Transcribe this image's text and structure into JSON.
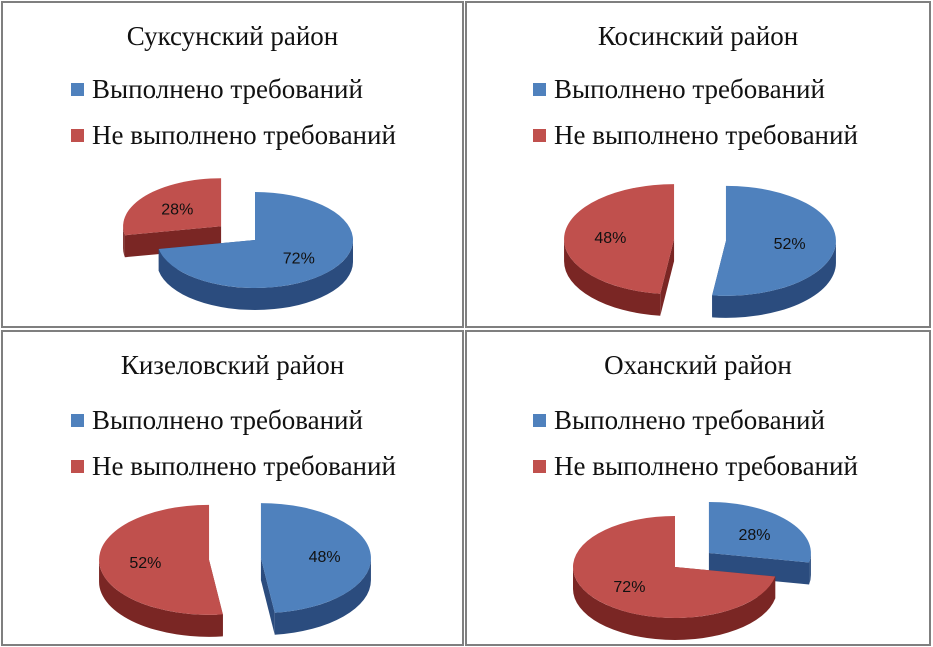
{
  "colors": {
    "done": "#4f81bd",
    "done_side": "#2b4c7e",
    "not_done": "#c0504d",
    "not_done_side": "#7a2624",
    "border": "#7f7f7f"
  },
  "chart_data": [
    {
      "type": "pie",
      "title": "Суксунский район",
      "categories": [
        "Выполнено требований",
        "Не выполнено требований"
      ],
      "values": [
        72,
        28
      ],
      "data_labels": [
        "72%",
        "28%"
      ],
      "legend": "top",
      "exploded": "Не выполнено требований"
    },
    {
      "type": "pie",
      "title": "Косинский район",
      "categories": [
        "Выполнено требований",
        "Не выполнено требований"
      ],
      "values": [
        52,
        48
      ],
      "data_labels": [
        "52%",
        "48%"
      ],
      "legend": "top",
      "exploded": "both"
    },
    {
      "type": "pie",
      "title": "Кизеловский район",
      "categories": [
        "Выполнено требований",
        "Не выполнено требований"
      ],
      "values": [
        48,
        52
      ],
      "data_labels": [
        "48%",
        "52%"
      ],
      "legend": "top",
      "exploded": "both"
    },
    {
      "type": "pie",
      "title": "Оханский район",
      "categories": [
        "Выполнено требований",
        "Не выполнено требований"
      ],
      "values": [
        28,
        72
      ],
      "data_labels": [
        "28%",
        "72%"
      ],
      "legend": "top",
      "exploded": "Выполнено требований"
    }
  ]
}
